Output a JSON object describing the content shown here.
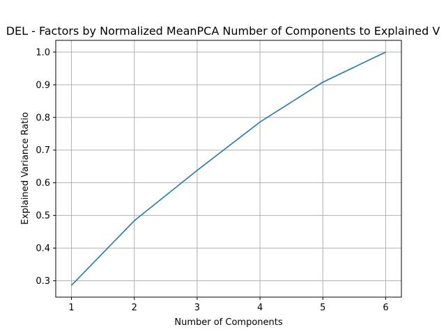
{
  "chart_data": {
    "type": "line",
    "title": "DEL - Factors by Normalized MeanPCA Number of Components to Explained V",
    "xlabel": "Number of Components",
    "ylabel": "Explained Variance Ratio",
    "x": [
      1,
      2,
      3,
      4,
      5,
      6
    ],
    "series": [
      {
        "values": [
          0.286,
          0.484,
          0.638,
          0.786,
          0.908,
          1.0
        ]
      }
    ],
    "xlim": [
      0.75,
      6.25
    ],
    "ylim": [
      0.25,
      1.036
    ],
    "xticks": [
      "1",
      "2",
      "3",
      "4",
      "5",
      "6"
    ],
    "yticks": [
      "0.3",
      "0.4",
      "0.5",
      "0.6",
      "0.7",
      "0.8",
      "0.9",
      "1.0"
    ],
    "grid": true,
    "colors": {
      "series": "#1f77b4",
      "grid": "#b0b0b0"
    }
  }
}
